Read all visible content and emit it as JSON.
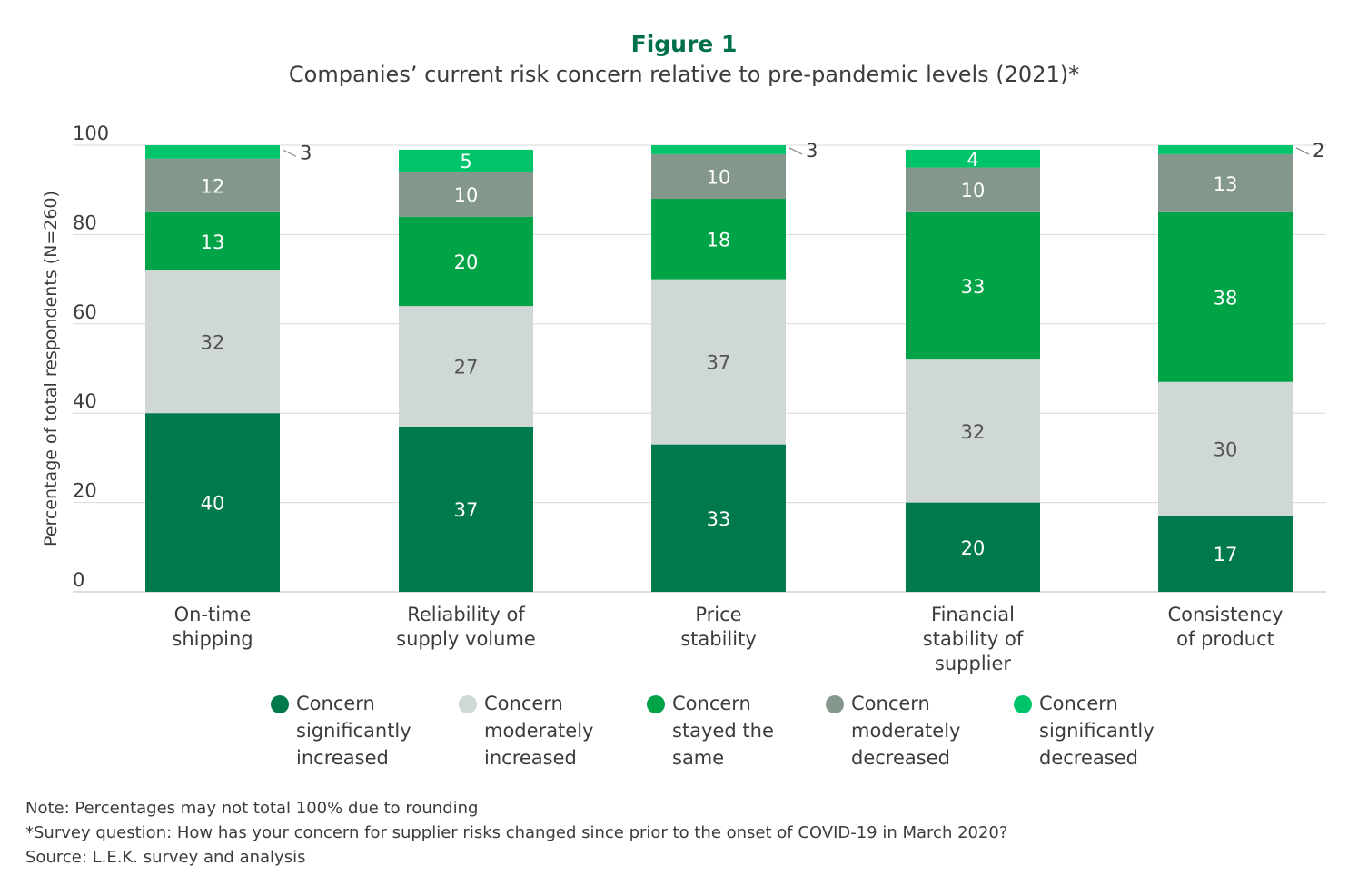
{
  "figure": {
    "label": "Figure 1",
    "title": "Companies’ current risk concern relative to pre-pandemic levels (2021)*"
  },
  "colors": {
    "sig_increased": "#007a4d",
    "mod_increased": "#cfd8d5",
    "same": "#00a346",
    "mod_decreased": "#84978d",
    "sig_decreased": "#00c46a",
    "grid": "#d9d9d9",
    "text": "#3c3c3c",
    "title_green": "#00704a"
  },
  "chart_data": {
    "type": "bar",
    "stacked": true,
    "ylabel": "Percentage of total respondents (N=260)",
    "ylim": [
      0,
      100
    ],
    "yticks": [
      0,
      20,
      40,
      60,
      80,
      100
    ],
    "grid": true,
    "categories": [
      [
        "On-time",
        "shipping"
      ],
      [
        "Reliability of",
        "supply volume"
      ],
      [
        "Price",
        "stability"
      ],
      [
        "Financial",
        "stability of",
        "supplier"
      ],
      [
        "Consistency",
        "of product"
      ]
    ],
    "series": [
      {
        "name": "Concern significantly increased",
        "legend_lines": [
          "Concern",
          "significantly",
          "increased"
        ],
        "color_key": "sig_increased",
        "label_color": "#ffffff",
        "values": [
          40,
          37,
          33,
          20,
          17
        ]
      },
      {
        "name": "Concern moderately increased",
        "legend_lines": [
          "Concern",
          "moderately",
          "increased"
        ],
        "color_key": "mod_increased",
        "label_color": "#555555",
        "values": [
          32,
          27,
          37,
          32,
          30
        ]
      },
      {
        "name": "Concern stayed the same",
        "legend_lines": [
          "Concern",
          "stayed the",
          "same"
        ],
        "color_key": "same",
        "label_color": "#ffffff",
        "values": [
          13,
          20,
          18,
          33,
          38
        ]
      },
      {
        "name": "Concern moderately decreased",
        "legend_lines": [
          "Concern",
          "moderately",
          "decreased"
        ],
        "color_key": "mod_decreased",
        "label_color": "#ffffff",
        "values": [
          12,
          10,
          10,
          10,
          13
        ]
      },
      {
        "name": "Concern significantly decreased",
        "legend_lines": [
          "Concern",
          "significantly",
          "decreased"
        ],
        "color_key": "sig_decreased",
        "label_color": "#ffffff",
        "values": [
          3,
          5,
          3,
          4,
          2
        ],
        "outside_label": [
          true,
          false,
          true,
          false,
          true
        ]
      }
    ]
  },
  "notes": [
    "Note: Percentages may not total 100% due to rounding",
    "*Survey question: How has your concern for supplier risks changed since prior to the onset of COVID-19 in March 2020?",
    "Source: L.E.K. survey and analysis"
  ]
}
